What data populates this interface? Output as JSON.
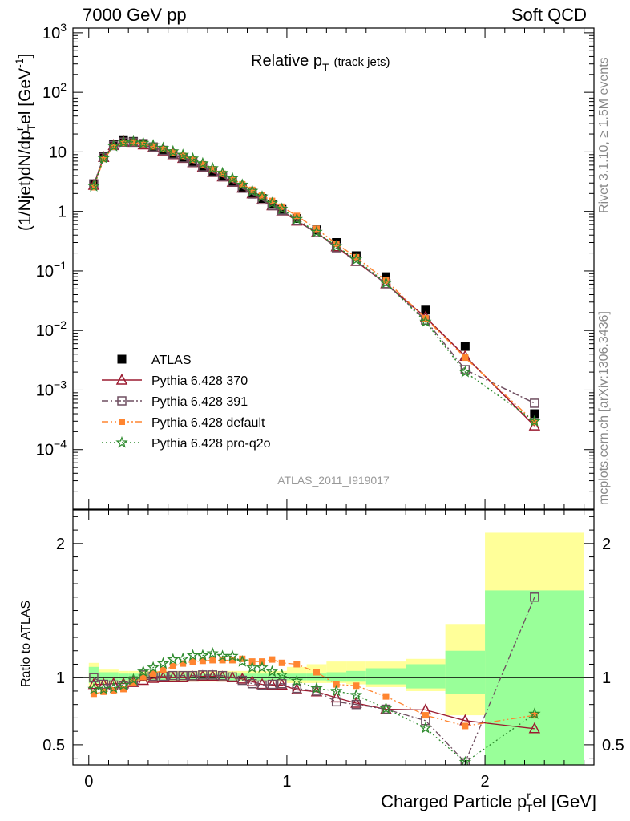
{
  "header": {
    "left": "7000 GeV pp",
    "right": "Soft QCD"
  },
  "side_labels": {
    "top": "Rivet 3.1.10, ≥ 1.5M events",
    "bottom": "mcplots.cern.ch [arXiv:1306.3436]"
  },
  "chart_data": {
    "type": "scatter",
    "title": "Relative p",
    "title_sub": "T",
    "title_note": "(track jets)",
    "analysis_label": "ATLAS_2011_I919017",
    "xlabel": "Charged Particle p",
    "xlabel_sup": "r",
    "xlabel_sub": "T",
    "xlabel_tail": "el [GeV]",
    "ylabel": "(1/Njet)dN/dp",
    "ylabel_sup": "r",
    "ylabel_sub": "T",
    "ylabel_tail": "el [GeV",
    "ylabel_unit_sup": "-1",
    "ratio_ylabel": "Ratio to ATLAS",
    "xlim": [
      -0.08,
      2.55
    ],
    "ylim_main": [
      1e-05,
      1200
    ],
    "ylim_ratio": [
      0.35,
      2.25
    ],
    "log_y_main": true,
    "x_ticks": [
      "0",
      "1",
      "2"
    ],
    "y_ticks_main": [
      "10^{-4}",
      "10^{-3}",
      "10^{-2}",
      "10^{-1}",
      "1",
      "10",
      "10^{2}",
      "10^{3}"
    ],
    "y_ticks_ratio": [
      "0.5",
      "1",
      "2"
    ],
    "legend_position": "bottom-left",
    "x": [
      0.025,
      0.075,
      0.125,
      0.175,
      0.225,
      0.275,
      0.325,
      0.375,
      0.425,
      0.475,
      0.525,
      0.575,
      0.625,
      0.675,
      0.725,
      0.775,
      0.825,
      0.875,
      0.925,
      0.975,
      1.05,
      1.15,
      1.25,
      1.35,
      1.5,
      1.7,
      1.9,
      2.25
    ],
    "series": [
      {
        "name": "ATLAS",
        "color": "#000000",
        "marker": "filled-square",
        "values": [
          2.9,
          8.5,
          13.5,
          15.5,
          15,
          13.5,
          12,
          10.5,
          9,
          7.8,
          6.6,
          5.5,
          4.5,
          3.8,
          3.1,
          2.5,
          2.05,
          1.65,
          1.32,
          1.08,
          0.76,
          0.49,
          0.3,
          0.18,
          0.08,
          0.022,
          0.0054,
          0.0004
        ]
      },
      {
        "name": "Pythia 6.428 370",
        "color": "#9b1b30",
        "marker": "open-triangle",
        "line": "solid",
        "values": [
          2.75,
          8.1,
          12.9,
          14.8,
          14.5,
          13.2,
          11.9,
          10.4,
          9.0,
          7.8,
          6.65,
          5.55,
          4.55,
          3.82,
          3.1,
          2.47,
          1.98,
          1.57,
          1.25,
          1.02,
          0.69,
          0.44,
          0.255,
          0.145,
          0.061,
          0.0167,
          0.0037,
          0.00025
        ]
      },
      {
        "name": "Pythia 6.428 391",
        "color": "#6f4e60",
        "marker": "open-square",
        "line": "dashdot",
        "values": [
          2.9,
          8.1,
          12.8,
          14.6,
          14.6,
          13.8,
          12.1,
          10.6,
          9.15,
          7.9,
          6.7,
          5.6,
          4.6,
          3.85,
          3.12,
          2.45,
          1.96,
          1.56,
          1.25,
          1.03,
          0.7,
          0.44,
          0.245,
          0.145,
          0.061,
          0.015,
          0.0022,
          0.0006
        ]
      },
      {
        "name": "Pythia 6.428 default",
        "color": "#ff8530",
        "marker": "filled-square-small",
        "line": "dashdotdot",
        "values": [
          2.55,
          7.6,
          12.2,
          14.2,
          14.5,
          13.6,
          12.4,
          11.1,
          9.8,
          8.6,
          7.4,
          6.2,
          5.1,
          4.3,
          3.5,
          2.85,
          2.3,
          1.85,
          1.5,
          1.2,
          0.84,
          0.51,
          0.285,
          0.17,
          0.069,
          0.016,
          0.0035,
          0.00029
        ]
      },
      {
        "name": "Pythia 6.428 pro-q2o",
        "color": "#2e8b2e",
        "marker": "star",
        "line": "dotted",
        "values": [
          2.65,
          7.8,
          12.5,
          14.6,
          14.8,
          14.1,
          12.9,
          11.6,
          10.2,
          8.9,
          7.7,
          6.4,
          5.3,
          4.4,
          3.6,
          2.8,
          2.2,
          1.77,
          1.38,
          1.1,
          0.74,
          0.45,
          0.26,
          0.155,
          0.063,
          0.014,
          0.002,
          0.0003
        ]
      }
    ],
    "ratio_series": [
      {
        "name": "Pythia 6.428 370",
        "values": [
          0.95,
          0.95,
          0.955,
          0.955,
          0.965,
          0.98,
          0.995,
          1.0,
          1.0,
          1.0,
          1.005,
          1.01,
          1.01,
          1.005,
          1.0,
          0.99,
          0.97,
          0.95,
          0.945,
          0.945,
          0.91,
          0.895,
          0.85,
          0.81,
          0.765,
          0.76,
          0.68,
          0.62
        ]
      },
      {
        "name": "Pythia 6.428 391",
        "values": [
          1.0,
          0.95,
          0.945,
          0.94,
          0.975,
          1.02,
          1.01,
          1.01,
          1.015,
          1.015,
          1.015,
          1.02,
          1.02,
          1.015,
          1.005,
          0.98,
          0.955,
          0.945,
          0.95,
          0.955,
          0.92,
          0.9,
          0.82,
          0.8,
          0.765,
          0.68,
          0.37,
          1.6
        ]
      },
      {
        "name": "Pythia 6.428 default",
        "values": [
          0.88,
          0.895,
          0.905,
          0.915,
          0.965,
          1.005,
          1.03,
          1.055,
          1.085,
          1.105,
          1.12,
          1.125,
          1.13,
          1.13,
          1.13,
          1.14,
          1.12,
          1.12,
          1.135,
          1.11,
          1.1,
          1.04,
          0.95,
          0.94,
          0.86,
          0.72,
          0.64,
          0.72
        ]
      },
      {
        "name": "Pythia 6.428 pro-q2o",
        "values": [
          0.915,
          0.915,
          0.925,
          0.945,
          0.985,
          1.045,
          1.075,
          1.105,
          1.135,
          1.14,
          1.165,
          1.165,
          1.18,
          1.16,
          1.16,
          1.12,
          1.075,
          1.075,
          1.045,
          1.02,
          0.975,
          0.92,
          0.9,
          0.87,
          0.77,
          0.625,
          0.37,
          0.73
        ]
      }
    ],
    "ratio_bands": {
      "xedges": [
        0,
        0.05,
        0.1,
        0.15,
        0.2,
        0.25,
        0.3,
        0.35,
        0.4,
        0.45,
        0.5,
        0.55,
        0.6,
        0.65,
        0.7,
        0.75,
        0.8,
        0.85,
        0.9,
        0.95,
        1.0,
        1.1,
        1.2,
        1.3,
        1.4,
        1.6,
        1.8,
        2.0,
        2.5
      ],
      "stat_lo": [
        0.96,
        0.97,
        0.97,
        0.98,
        0.98,
        0.98,
        0.98,
        0.98,
        0.98,
        0.98,
        0.98,
        0.98,
        0.98,
        0.98,
        0.98,
        0.98,
        0.98,
        0.98,
        0.98,
        0.98,
        0.98,
        0.98,
        0.97,
        0.97,
        0.95,
        0.92,
        0.88,
        0.35
      ],
      "stat_hi": [
        1.08,
        1.04,
        1.04,
        1.03,
        1.03,
        1.03,
        1.03,
        1.03,
        1.03,
        1.03,
        1.03,
        1.03,
        1.03,
        1.03,
        1.03,
        1.03,
        1.03,
        1.03,
        1.03,
        1.03,
        1.03,
        1.03,
        1.04,
        1.05,
        1.07,
        1.1,
        1.2,
        1.65
      ],
      "syst_lo": [
        0.93,
        0.95,
        0.96,
        0.97,
        0.97,
        0.97,
        0.97,
        0.97,
        0.97,
        0.97,
        0.97,
        0.97,
        0.97,
        0.97,
        0.97,
        0.97,
        0.97,
        0.97,
        0.97,
        0.97,
        0.96,
        0.96,
        0.96,
        0.95,
        0.93,
        0.9,
        0.72,
        0.35
      ],
      "syst_hi": [
        1.11,
        1.06,
        1.06,
        1.05,
        1.05,
        1.05,
        1.05,
        1.05,
        1.05,
        1.05,
        1.05,
        1.05,
        1.05,
        1.05,
        1.05,
        1.05,
        1.05,
        1.05,
        1.05,
        1.05,
        1.08,
        1.1,
        1.12,
        1.12,
        1.12,
        1.14,
        1.4,
        2.08
      ],
      "syst_color": "#ffff99",
      "stat_color": "#99ff99"
    }
  }
}
